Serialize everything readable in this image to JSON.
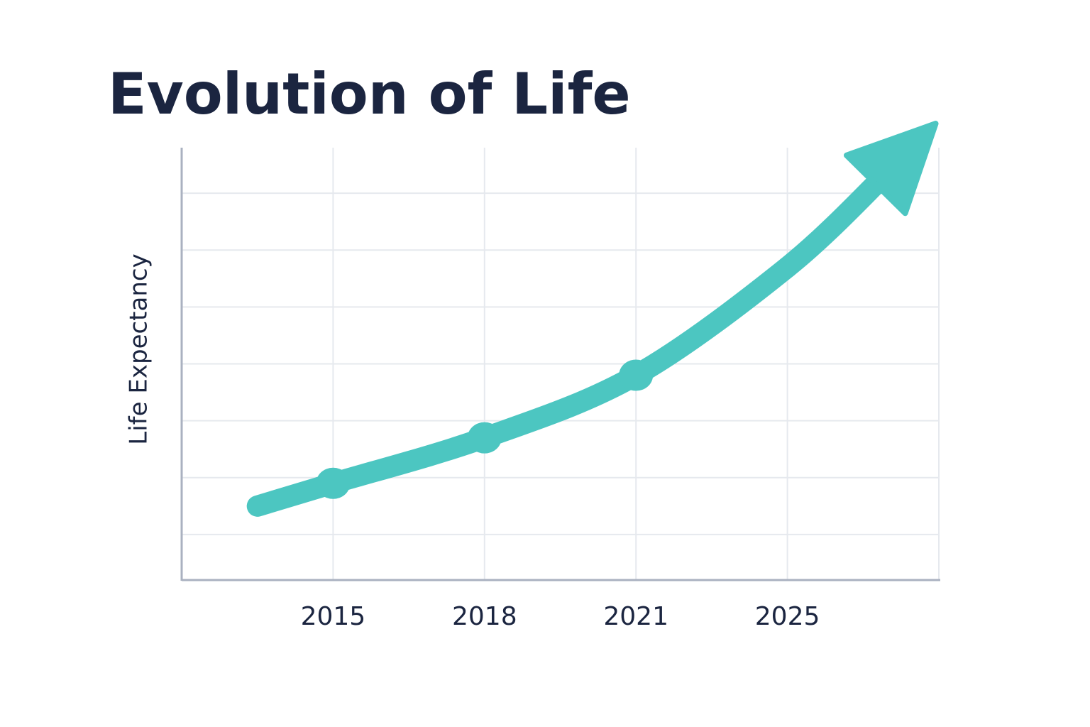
{
  "chart_data": {
    "type": "line",
    "title": "Evolution of Life",
    "y_label": "Life Expectancy",
    "categories": [
      "2015",
      "2018",
      "2021",
      "2025"
    ],
    "series": [
      {
        "values": [
          1.9,
          2.7,
          3.8,
          5.7
        ],
        "color": "#4cc6c1",
        "markers": [
          true,
          true,
          true,
          false
        ]
      }
    ],
    "ylim": [
      0.2,
      7.8
    ],
    "yticks": [
      1,
      2,
      3,
      4,
      5,
      6,
      7
    ],
    "grid": true,
    "arrow_head": true
  }
}
